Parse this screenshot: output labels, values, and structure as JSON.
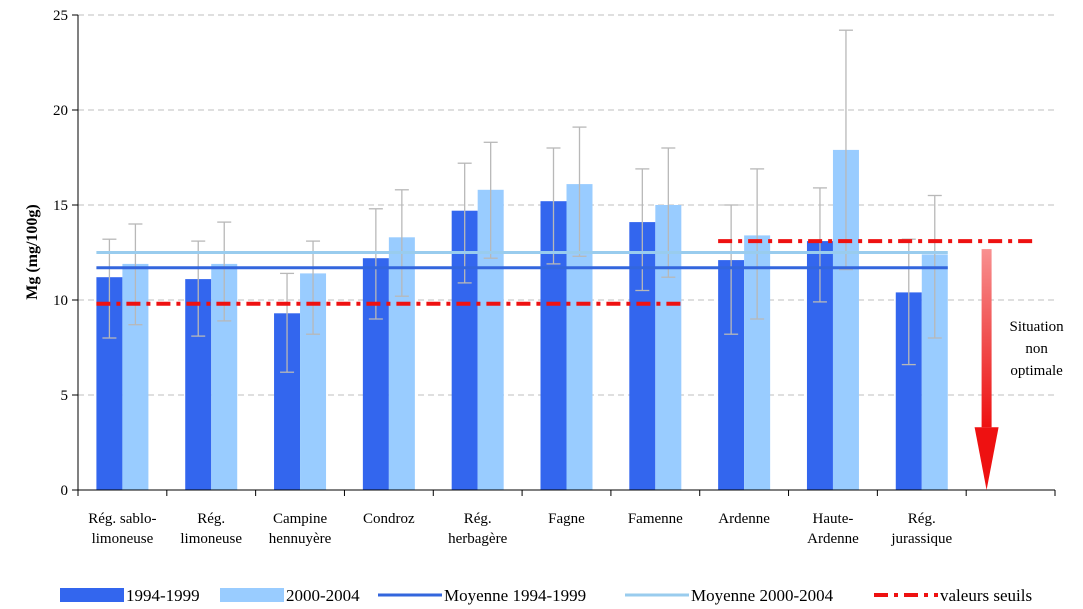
{
  "chart_data": {
    "type": "bar",
    "ylabel": "Mg (mg/100g)",
    "ylim": [
      0,
      25
    ],
    "yticks": [
      0,
      5,
      10,
      15,
      20,
      25
    ],
    "grid": true,
    "legend_position": "bottom",
    "categories": [
      [
        "Rég. sablo-",
        "limoneuse"
      ],
      [
        "Rég.",
        "limoneuse"
      ],
      [
        "Campine",
        "hennuyère"
      ],
      [
        "Condroz"
      ],
      [
        "Rég.",
        "herbagère"
      ],
      [
        "Fagne"
      ],
      [
        "Famenne"
      ],
      [
        "Ardenne"
      ],
      [
        "Haute-",
        "Ardenne"
      ],
      [
        "Rég.",
        "jurassique"
      ]
    ],
    "series": [
      {
        "name": "1994-1999",
        "color": "#3366ee",
        "values": [
          11.2,
          11.1,
          9.3,
          12.2,
          14.7,
          15.2,
          14.1,
          12.1,
          13.1,
          10.4
        ],
        "err_low": [
          8.0,
          8.1,
          6.2,
          9.0,
          10.9,
          11.9,
          10.5,
          8.2,
          9.9,
          6.6
        ],
        "err_high": [
          13.2,
          13.1,
          11.4,
          14.8,
          17.2,
          18.0,
          16.9,
          15.0,
          15.9,
          13.2
        ]
      },
      {
        "name": "2000-2004",
        "color": "#99ccff",
        "values": [
          11.9,
          11.9,
          11.4,
          13.3,
          15.8,
          16.1,
          15.0,
          13.4,
          17.9,
          12.4
        ],
        "err_low": [
          8.7,
          8.9,
          8.2,
          10.2,
          12.2,
          12.3,
          11.2,
          9.0,
          11.6,
          8.0
        ],
        "err_high": [
          14.0,
          14.1,
          13.1,
          15.8,
          18.3,
          19.1,
          18.0,
          16.9,
          24.2,
          15.5
        ]
      }
    ],
    "reference_lines": [
      {
        "name": "Moyenne 1994-1999",
        "color": "#3366dd",
        "value": 11.7,
        "from_category": 0,
        "to_category": 9
      },
      {
        "name": "Moyenne 2000-2004",
        "color": "#99ccee",
        "value": 12.5,
        "from_category": 0,
        "to_category": 9
      }
    ],
    "thresholds": {
      "name": "valeurs seuils",
      "color": "#ee1111",
      "segments": [
        {
          "value": 9.8,
          "from_category": 0,
          "to_category": 6
        },
        {
          "value": 13.1,
          "from_category": 7,
          "to_category": 10
        }
      ]
    },
    "annotation": {
      "lines": [
        "Situation",
        "non",
        "optimale"
      ],
      "arrow_color": "#ee1111"
    }
  }
}
